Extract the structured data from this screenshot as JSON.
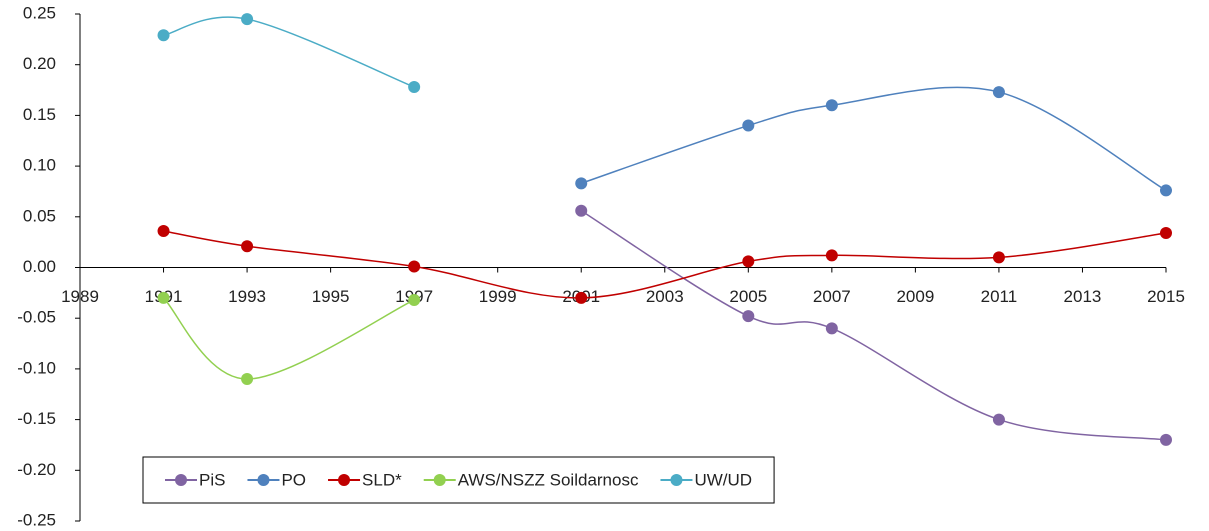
{
  "chart_data": {
    "type": "line",
    "x": [
      1991,
      1993,
      1997,
      2001,
      2005,
      2007,
      2011,
      2015
    ],
    "series": [
      {
        "name": "PiS",
        "color": "#8064a2",
        "values": [
          null,
          null,
          null,
          0.056,
          -0.048,
          -0.06,
          -0.15,
          -0.17
        ]
      },
      {
        "name": "PO",
        "color": "#4f81bd",
        "values": [
          null,
          null,
          null,
          0.083,
          0.14,
          0.16,
          0.173,
          0.076
        ]
      },
      {
        "name": "SLD*",
        "color": "#c00000",
        "values": [
          0.036,
          0.021,
          0.001,
          -0.03,
          0.006,
          0.012,
          0.01,
          0.034
        ]
      },
      {
        "name": "AWS/NSZZ Soildarnosc",
        "color": "#92d050",
        "values": [
          -0.03,
          -0.11,
          -0.032,
          null,
          null,
          null,
          null,
          null
        ]
      },
      {
        "name": "UW/UD",
        "color": "#4bacc6",
        "values": [
          0.229,
          0.245,
          0.178,
          null,
          null,
          null,
          null,
          null
        ]
      }
    ],
    "xlim": [
      1989,
      2015
    ],
    "xticks": [
      1989,
      1991,
      1993,
      1995,
      1997,
      1999,
      2001,
      2003,
      2005,
      2007,
      2009,
      2011,
      2013,
      2015
    ],
    "ylim": [
      -0.25,
      0.25
    ],
    "yticks": [
      {
        "value": 0.25,
        "label": "0.25"
      },
      {
        "value": 0.2,
        "label": "0.20"
      },
      {
        "value": 0.15,
        "label": "0.15"
      },
      {
        "value": 0.1,
        "label": "0.10"
      },
      {
        "value": 0.05,
        "label": "0.05"
      },
      {
        "value": 0,
        "label": "0.00"
      },
      {
        "value": -0.05,
        "label": "-0.05"
      },
      {
        "value": -0.1,
        "label": "-0.10"
      },
      {
        "value": -0.15,
        "label": "-0.15"
      },
      {
        "value": -0.2,
        "label": "-0.20"
      },
      {
        "value": -0.25,
        "label": "-0.25"
      }
    ],
    "legend": "bottom-left",
    "smooth": true
  }
}
